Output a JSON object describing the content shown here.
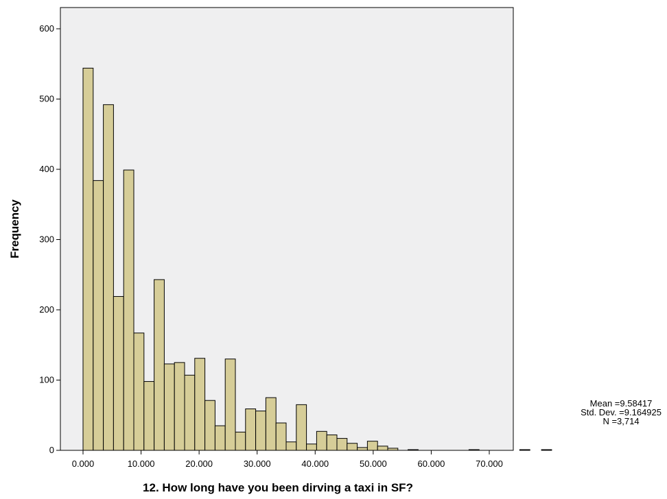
{
  "chart_data": {
    "type": "bar",
    "title": "",
    "xlabel": "12. How long have you been dirving a taxi in SF?",
    "ylabel": "Frequency",
    "xlim": [
      -4,
      75
    ],
    "ylim": [
      0,
      630
    ],
    "x_ticks": [
      "0.000",
      "10.000",
      "20.000",
      "30.000",
      "40.000",
      "50.000",
      "60.000",
      "70.000"
    ],
    "x_tick_values": [
      0,
      10,
      20,
      30,
      40,
      50,
      60,
      70
    ],
    "y_ticks": [
      "0",
      "100",
      "200",
      "300",
      "400",
      "500",
      "600"
    ],
    "y_tick_values": [
      0,
      100,
      200,
      300,
      400,
      500,
      600
    ],
    "bin_width": 1.75,
    "bins": [
      {
        "start": 0.0,
        "count": 544
      },
      {
        "start": 1.75,
        "count": 384
      },
      {
        "start": 3.5,
        "count": 492
      },
      {
        "start": 5.25,
        "count": 219
      },
      {
        "start": 7.0,
        "count": 399
      },
      {
        "start": 8.75,
        "count": 167
      },
      {
        "start": 10.5,
        "count": 98
      },
      {
        "start": 12.25,
        "count": 243
      },
      {
        "start": 14.0,
        "count": 123
      },
      {
        "start": 15.75,
        "count": 125
      },
      {
        "start": 17.5,
        "count": 107
      },
      {
        "start": 19.25,
        "count": 131
      },
      {
        "start": 21.0,
        "count": 71
      },
      {
        "start": 22.75,
        "count": 35
      },
      {
        "start": 24.5,
        "count": 130
      },
      {
        "start": 26.25,
        "count": 26
      },
      {
        "start": 28.0,
        "count": 59
      },
      {
        "start": 29.75,
        "count": 56
      },
      {
        "start": 31.5,
        "count": 75
      },
      {
        "start": 33.25,
        "count": 39
      },
      {
        "start": 35.0,
        "count": 12
      },
      {
        "start": 36.75,
        "count": 65
      },
      {
        "start": 38.5,
        "count": 9
      },
      {
        "start": 40.25,
        "count": 27
      },
      {
        "start": 42.0,
        "count": 22
      },
      {
        "start": 43.75,
        "count": 17
      },
      {
        "start": 45.5,
        "count": 10
      },
      {
        "start": 47.25,
        "count": 4
      },
      {
        "start": 49.0,
        "count": 13
      },
      {
        "start": 50.75,
        "count": 6
      },
      {
        "start": 52.5,
        "count": 3
      },
      {
        "start": 56.0,
        "count": 1
      },
      {
        "start": 66.5,
        "count": 1
      },
      {
        "start": 75.25,
        "count": 1
      },
      {
        "start": 79.0,
        "count": 1
      }
    ],
    "stats": {
      "mean": "Mean =9.58417",
      "std_dev": "Std. Dev. =9.164925",
      "n": "N =3,714"
    },
    "colors": {
      "plot_background": "#efeff0",
      "bar_fill": "#d6cd98",
      "bar_stroke": "#000000"
    },
    "grid": false
  }
}
